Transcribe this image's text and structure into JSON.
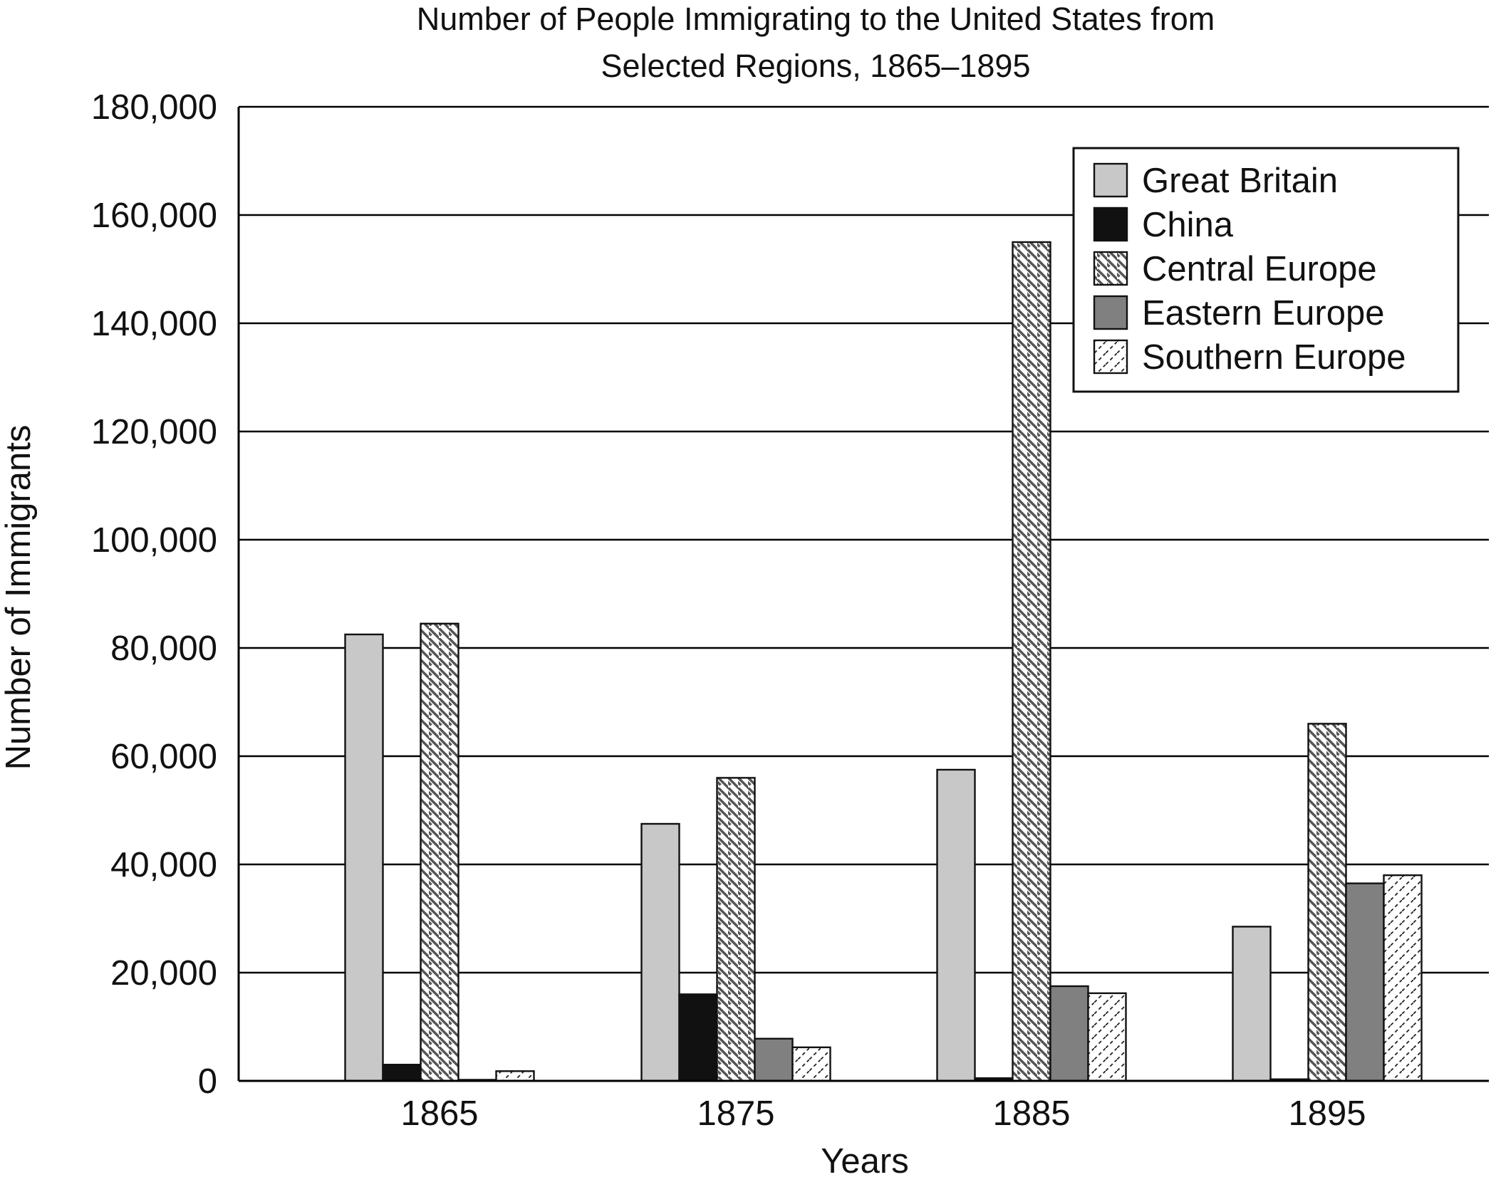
{
  "chart_data": {
    "type": "bar",
    "title": "Number of People Immigrating to the United States from Selected Regions, 1865–1895",
    "title_lines": [
      "Number of People Immigrating to the United States from",
      "Selected Regions, 1865–1895"
    ],
    "xlabel": "Years",
    "ylabel": "Number of Immigrants",
    "categories": [
      "1865",
      "1875",
      "1885",
      "1895"
    ],
    "ylim": [
      0,
      180000
    ],
    "yticks": [
      0,
      20000,
      40000,
      60000,
      80000,
      100000,
      120000,
      140000,
      160000,
      180000
    ],
    "ytick_labels": [
      "0",
      "20,000",
      "40,000",
      "60,000",
      "80,000",
      "100,000",
      "120,000",
      "140,000",
      "160,000",
      "180,000"
    ],
    "grid": "horizontal",
    "legend_position": "top-right",
    "series": [
      {
        "name": "Great Britain",
        "fill": "#c8c8c8",
        "pattern": "solid",
        "values": [
          82500,
          47500,
          57500,
          28500
        ]
      },
      {
        "name": "China",
        "fill": "#111111",
        "pattern": "solid",
        "values": [
          3000,
          16000,
          500,
          300
        ]
      },
      {
        "name": "Central Europe",
        "fill": "#ffffff",
        "pattern": "diagonal-down",
        "values": [
          84500,
          56000,
          155000,
          66000
        ]
      },
      {
        "name": "Eastern Europe",
        "fill": "#808080",
        "pattern": "solid",
        "values": [
          200,
          7800,
          17500,
          36500
        ]
      },
      {
        "name": "Southern Europe",
        "fill": "#ffffff",
        "pattern": "diagonal-up-dashed",
        "values": [
          1800,
          6200,
          16200,
          38000
        ]
      }
    ]
  }
}
